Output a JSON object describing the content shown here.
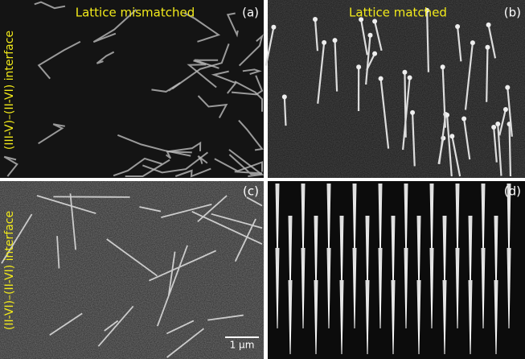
{
  "panels": [
    {
      "tag": "(a)",
      "title": "Lattice mismatched"
    },
    {
      "tag": "(b)",
      "title": "Lattice matched"
    },
    {
      "tag": "(c)"
    },
    {
      "tag": "(d)"
    }
  ],
  "row_labels": [
    "(III-V)–(II-VI) interface",
    "(II-VI)–(II-VI) interface"
  ],
  "scale_bar": "1 μm"
}
